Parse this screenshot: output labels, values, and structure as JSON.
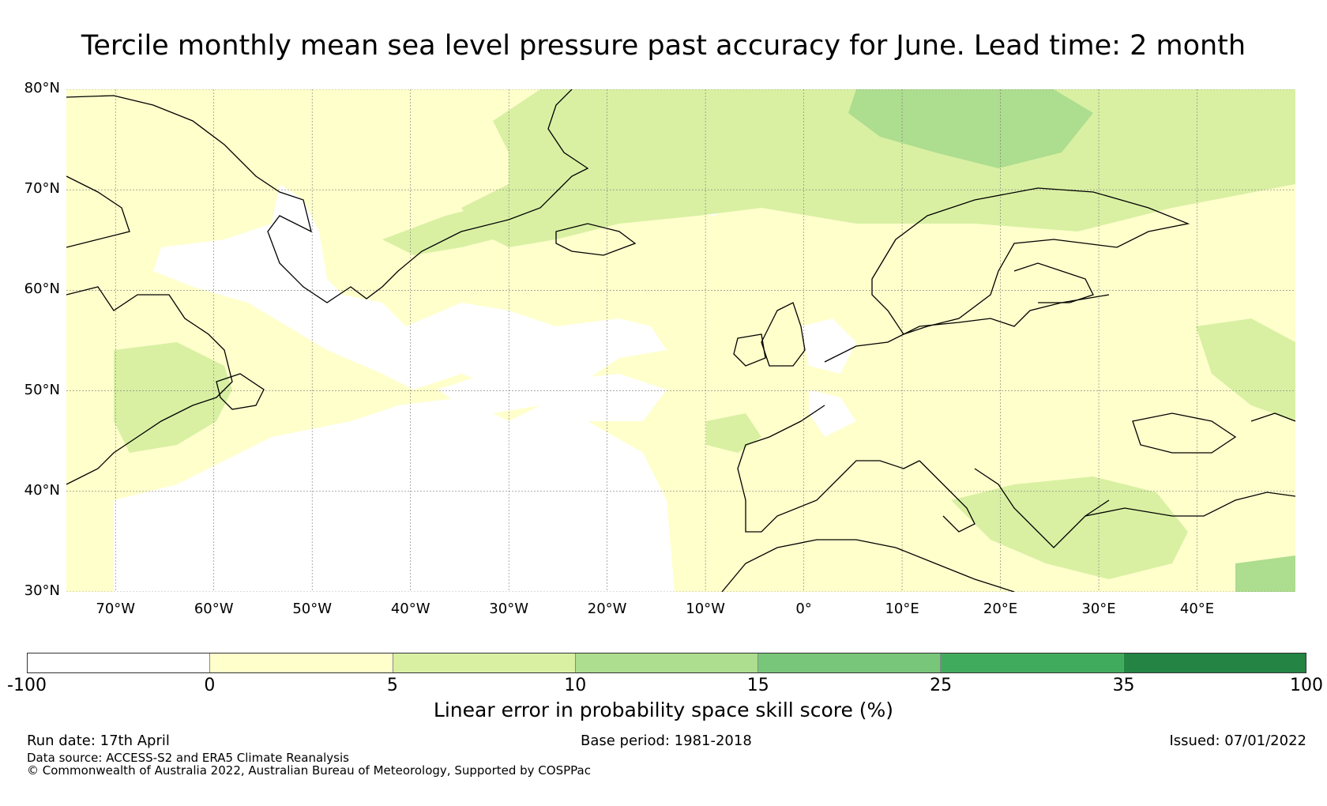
{
  "title": "Tercile monthly mean sea level pressure past accuracy for June. Lead time: 2 month",
  "map": {
    "lat_range": [
      30,
      80
    ],
    "lon_range": [
      -75,
      50
    ],
    "lat_labels": [
      "80°N",
      "70°N",
      "60°N",
      "50°N",
      "40°N",
      "30°N"
    ],
    "lat_values": [
      80,
      70,
      60,
      50,
      40,
      30
    ],
    "lon_labels": [
      "70°W",
      "60°W",
      "50°W",
      "40°W",
      "30°W",
      "20°W",
      "10°W",
      "0°",
      "10°E",
      "20°E",
      "30°E",
      "40°E"
    ],
    "lon_values": [
      -70,
      -60,
      -50,
      -40,
      -30,
      -20,
      -10,
      0,
      10,
      20,
      30,
      40
    ],
    "grid": true
  },
  "colorbar": {
    "label": "Linear error in probability space skill score (%)",
    "ticks": [
      "-100",
      "0",
      "5",
      "10",
      "15",
      "25",
      "35",
      "100"
    ],
    "colors": [
      "#ffffff",
      "#ffffcc",
      "#d9f0a3",
      "#addd8e",
      "#78c679",
      "#41ab5d",
      "#238443"
    ]
  },
  "footer": {
    "run_date": "Run date: 17th April",
    "base_period": "Base period: 1981-2018",
    "issued": "Issued: 07/01/2022",
    "data_source": "Data source: ACCESS-S2 and ERA5 Climate Reanalysis",
    "copyright": "© Commonwealth of Australia 2022, Australian Bureau of Meteorology, Supported by COSPPac"
  }
}
